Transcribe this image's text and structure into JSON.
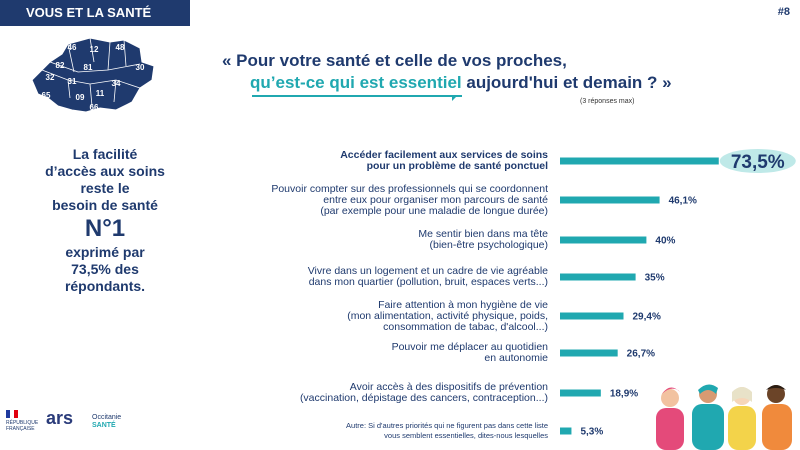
{
  "header": {
    "tag": "VOUS ET LA SANTÉ",
    "slide_number": "#8"
  },
  "map_labels": [
    "46",
    "12",
    "48",
    "82",
    "81",
    "30",
    "32",
    "31",
    "34",
    "65",
    "09",
    "11",
    "66"
  ],
  "question": {
    "line1": "« Pour votre santé et celle de vos proches,",
    "line2_highlight": "qu’est-ce qui est essentiel",
    "line2_rest": " aujourd'hui et demain ? »",
    "note": "(3 réponses max)"
  },
  "sidebar": {
    "line1": "La facilité",
    "line2": "d’accès aux soins",
    "line3": "reste le",
    "line4": "besoin de santé",
    "big": "N°1",
    "line5": "exprimé par",
    "line6": "73,5% des",
    "line7": "répondants."
  },
  "logos": {
    "republique": "RÉPUBLIQUE FRANÇAISE",
    "ars": "ars",
    "occitanie": "Occitanie",
    "sante": "SANTÉ"
  },
  "chart_data": {
    "type": "bar",
    "orientation": "horizontal",
    "xlim": [
      0,
      100
    ],
    "categories": [
      [
        "Accéder facilement aux services de soins",
        "pour un problème de santé ponctuel"
      ],
      [
        "Pouvoir compter sur des professionnels qui se coordonnent",
        "entre eux pour organiser mon parcours de santé",
        "(par exemple pour une maladie de longue durée)"
      ],
      [
        "Me sentir bien dans ma tête",
        "(bien-être psychologique)"
      ],
      [
        "Vivre dans un logement et un cadre de vie agréable",
        "dans mon quartier (pollution, bruit, espaces verts...)"
      ],
      [
        "Faire attention à mon hygiène de vie",
        "(mon alimentation, activité physique, poids,",
        "consommation de tabac, d'alcool...)"
      ],
      [
        "Pouvoir me déplacer au quotidien",
        "en autonomie"
      ],
      [
        "Avoir accès à des dispositifs de prévention",
        "(vaccination, dépistage des cancers, contraception...)"
      ],
      [
        "Autre: Si d'autres priorités qui ne figurent pas dans cette liste",
        "vous semblent essentielles, dites-nous lesquelles"
      ]
    ],
    "values": [
      73.5,
      46.1,
      40,
      35,
      29.4,
      26.7,
      18.9,
      5.3
    ],
    "value_labels": [
      "73,5%",
      "46,1%",
      "40%",
      "35%",
      "29,4%",
      "26,7%",
      "18,9%",
      "5,3%"
    ],
    "bar_color": "#20a8b0",
    "highlight_fill": "#bfe9e8"
  }
}
